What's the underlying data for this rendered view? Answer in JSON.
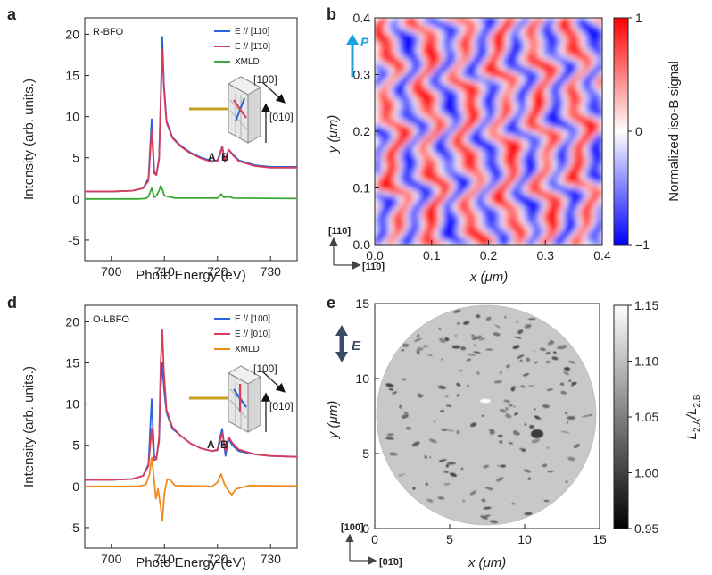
{
  "panels": {
    "a": {
      "label": "a",
      "sample": "R-BFO"
    },
    "b": {
      "label": "b"
    },
    "d": {
      "label": "d",
      "sample": "O-LBFO"
    },
    "e": {
      "label": "e"
    }
  },
  "chart_data": [
    {
      "id": "a",
      "type": "line",
      "xlabel": "Photo Energy (eV)",
      "ylabel": "Intensity (arb. units.)",
      "xlim": [
        695,
        735
      ],
      "ylim": [
        -7.5,
        22
      ],
      "xticks": [
        "700",
        "710",
        "720",
        "730"
      ],
      "yticks": [
        "-5",
        "0",
        "5",
        "10",
        "15",
        "20"
      ],
      "series": [
        {
          "name": "E // [110]",
          "color": "#2a62d8",
          "points": [
            [
              695,
              0.9
            ],
            [
              700,
              0.9
            ],
            [
              704,
              1.0
            ],
            [
              706,
              1.3
            ],
            [
              707,
              2.5
            ],
            [
              707.6,
              9.7
            ],
            [
              708.1,
              3.3
            ],
            [
              708.5,
              3.0
            ],
            [
              709,
              5.0
            ],
            [
              709.3,
              12.0
            ],
            [
              709.6,
              19.7
            ],
            [
              709.9,
              14.0
            ],
            [
              710.4,
              9.5
            ],
            [
              711.5,
              7.5
            ],
            [
              713,
              6.5
            ],
            [
              715,
              5.6
            ],
            [
              717,
              5.0
            ],
            [
              719,
              4.6
            ],
            [
              720,
              4.7
            ],
            [
              720.5,
              5.6
            ],
            [
              720.9,
              6.4
            ],
            [
              721.4,
              4.5
            ],
            [
              722.1,
              6.0
            ],
            [
              722.8,
              5.5
            ],
            [
              724,
              4.7
            ],
            [
              727,
              4.1
            ],
            [
              730,
              3.9
            ],
            [
              735,
              3.9
            ]
          ]
        },
        {
          "name": "E // [1̄10]",
          "color": "#d83c58",
          "points": [
            [
              695,
              0.9
            ],
            [
              700,
              0.9
            ],
            [
              704,
              1.0
            ],
            [
              706,
              1.3
            ],
            [
              707,
              2.2
            ],
            [
              707.6,
              8.3
            ],
            [
              708.1,
              3.1
            ],
            [
              708.5,
              2.9
            ],
            [
              709,
              4.8
            ],
            [
              709.3,
              11.5
            ],
            [
              709.6,
              18.2
            ],
            [
              709.9,
              13.5
            ],
            [
              710.4,
              9.3
            ],
            [
              711.5,
              7.4
            ],
            [
              713,
              6.4
            ],
            [
              715,
              5.5
            ],
            [
              717,
              4.9
            ],
            [
              719,
              4.5
            ],
            [
              720,
              4.6
            ],
            [
              720.5,
              5.4
            ],
            [
              720.9,
              6.3
            ],
            [
              721.4,
              4.5
            ],
            [
              722.1,
              6.0
            ],
            [
              722.8,
              5.4
            ],
            [
              724,
              4.6
            ],
            [
              727,
              4.0
            ],
            [
              730,
              3.8
            ],
            [
              735,
              3.8
            ]
          ]
        },
        {
          "name": "XMLD",
          "color": "#3aaa35",
          "points": [
            [
              695,
              0
            ],
            [
              705,
              0
            ],
            [
              706.5,
              0.05
            ],
            [
              707,
              0.3
            ],
            [
              707.6,
              1.3
            ],
            [
              708.1,
              0.2
            ],
            [
              708.5,
              0.4
            ],
            [
              709,
              1.0
            ],
            [
              709.3,
              1.6
            ],
            [
              709.6,
              1.2
            ],
            [
              710,
              0.4
            ],
            [
              712,
              0.1
            ],
            [
              720,
              0.1
            ],
            [
              720.7,
              0.6
            ],
            [
              721.2,
              0.2
            ],
            [
              722.1,
              0.3
            ],
            [
              723,
              0.1
            ],
            [
              735,
              0.05
            ]
          ]
        }
      ],
      "annotations": [
        "A",
        "B",
        "[100]",
        "[010]"
      ]
    },
    {
      "id": "b",
      "type": "heatmap",
      "xlabel": "x (μm)",
      "ylabel": "y (μm)",
      "xlim": [
        0,
        0.4
      ],
      "ylim": [
        0,
        0.4
      ],
      "xticks": [
        "0.0",
        "0.1",
        "0.2",
        "0.3",
        "0.4"
      ],
      "yticks": [
        "0.0",
        "0.1",
        "0.2",
        "0.3",
        "0.4"
      ],
      "colorbar": {
        "label": "Normalized iso-B signal",
        "ticks": [
          "1",
          "0",
          "−1"
        ],
        "range": [
          -1,
          1
        ],
        "colors": [
          "#0000ff",
          "#ffffff",
          "#ff0000"
        ]
      },
      "stripe_period_um": 0.066,
      "annotations": [
        "P",
        "[110]",
        "[11̄0]"
      ]
    },
    {
      "id": "d",
      "type": "line",
      "xlabel": "Photo Energy (eV)",
      "ylabel": "Intensity (arb. units.)",
      "xlim": [
        695,
        735
      ],
      "ylim": [
        -7.5,
        22
      ],
      "xticks": [
        "700",
        "710",
        "720",
        "730"
      ],
      "yticks": [
        "-5",
        "0",
        "5",
        "10",
        "15",
        "20"
      ],
      "series": [
        {
          "name": "E // [100]",
          "color": "#2a62d8",
          "points": [
            [
              695,
              0.8
            ],
            [
              700,
              0.8
            ],
            [
              704,
              0.9
            ],
            [
              706,
              1.3
            ],
            [
              707,
              2.7
            ],
            [
              707.6,
              10.6
            ],
            [
              708.1,
              3.6
            ],
            [
              708.5,
              3.5
            ],
            [
              709,
              5.5
            ],
            [
              709.3,
              12.0
            ],
            [
              709.6,
              15.0
            ],
            [
              709.9,
              12.0
            ],
            [
              710.4,
              9.0
            ],
            [
              711.5,
              7.0
            ],
            [
              713,
              6.2
            ],
            [
              715,
              5.2
            ],
            [
              717,
              4.6
            ],
            [
              719,
              4.3
            ],
            [
              720,
              4.5
            ],
            [
              720.5,
              6.0
            ],
            [
              720.9,
              7.0
            ],
            [
              721.5,
              3.7
            ],
            [
              722.1,
              5.8
            ],
            [
              722.8,
              5.0
            ],
            [
              724,
              4.3
            ],
            [
              727,
              3.9
            ],
            [
              730,
              3.7
            ],
            [
              735,
              3.6
            ]
          ]
        },
        {
          "name": "E // [010]",
          "color": "#d83c58",
          "points": [
            [
              695,
              0.8
            ],
            [
              700,
              0.8
            ],
            [
              704,
              0.9
            ],
            [
              706,
              1.3
            ],
            [
              707,
              2.5
            ],
            [
              707.6,
              7.0
            ],
            [
              708.1,
              3.2
            ],
            [
              708.5,
              3.3
            ],
            [
              709,
              6.0
            ],
            [
              709.3,
              15.0
            ],
            [
              709.6,
              19.0
            ],
            [
              709.9,
              14.0
            ],
            [
              710.4,
              9.3
            ],
            [
              711.5,
              7.2
            ],
            [
              713,
              6.2
            ],
            [
              715,
              5.2
            ],
            [
              717,
              4.6
            ],
            [
              719,
              4.3
            ],
            [
              720,
              4.4
            ],
            [
              720.5,
              5.5
            ],
            [
              720.9,
              6.5
            ],
            [
              721.5,
              4.3
            ],
            [
              722.1,
              6.0
            ],
            [
              722.8,
              5.3
            ],
            [
              724,
              4.5
            ],
            [
              727,
              3.9
            ],
            [
              730,
              3.7
            ],
            [
              735,
              3.6
            ]
          ]
        },
        {
          "name": "XMLD",
          "color": "#f08a1c",
          "points": [
            [
              695,
              0
            ],
            [
              705,
              0
            ],
            [
              706.5,
              0.2
            ],
            [
              707.2,
              1.5
            ],
            [
              707.6,
              3.5
            ],
            [
              708,
              1.2
            ],
            [
              708.4,
              -1.5
            ],
            [
              708.8,
              -0.3
            ],
            [
              709.3,
              -2.5
            ],
            [
              709.6,
              -4.2
            ],
            [
              710,
              -0.8
            ],
            [
              710.5,
              0.8
            ],
            [
              711,
              0.9
            ],
            [
              712,
              0.1
            ],
            [
              719,
              0
            ],
            [
              720,
              0.5
            ],
            [
              720.7,
              1.5
            ],
            [
              721.3,
              0.3
            ],
            [
              722,
              -0.5
            ],
            [
              722.7,
              -1.0
            ],
            [
              723.5,
              -0.3
            ],
            [
              726,
              0.1
            ],
            [
              735,
              0.05
            ]
          ]
        }
      ],
      "annotations": [
        "A",
        "B",
        "[100]",
        "[010]"
      ]
    },
    {
      "id": "e",
      "type": "heatmap",
      "xlabel": "x (μm)",
      "ylabel": "y (μm)",
      "xlim": [
        0,
        15
      ],
      "ylim": [
        0,
        15
      ],
      "xticks": [
        "0",
        "5",
        "10",
        "15"
      ],
      "yticks": [
        "0",
        "5",
        "10",
        "15"
      ],
      "colorbar": {
        "label": "L2,A/L2,B",
        "label_main_a": "L",
        "label_sub_a": "2,A",
        "label_main_b": "/L",
        "label_sub_b": "2,B",
        "ticks": [
          "1.15",
          "1.10",
          "1.05",
          "1.00",
          "0.95"
        ],
        "range": [
          0.95,
          1.15
        ],
        "colors": [
          "#000000",
          "#ffffff"
        ]
      },
      "annotations": [
        "E",
        "[100]",
        "[01̄0]"
      ]
    }
  ]
}
